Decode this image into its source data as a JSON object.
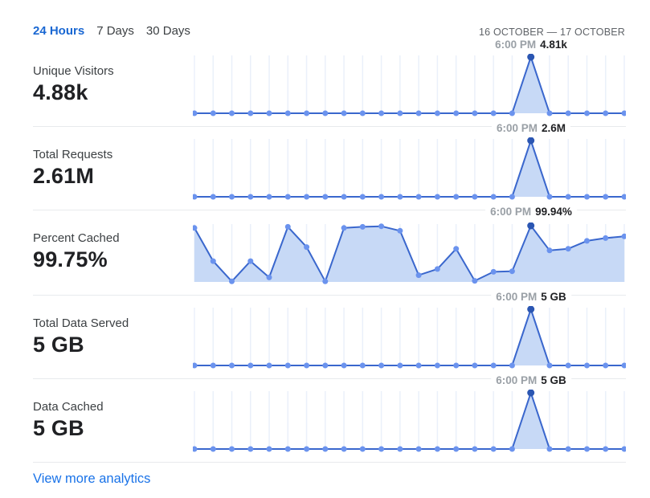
{
  "header": {
    "tabs": [
      {
        "label": "24 Hours",
        "active": true
      },
      {
        "label": "7 Days",
        "active": false
      },
      {
        "label": "30 Days",
        "active": false
      }
    ],
    "date_range": "16 OCTOBER — 17 OCTOBER"
  },
  "rows": [
    {
      "label": "Unique Visitors",
      "value": "4.88k",
      "tooltip_time": "6:00 PM",
      "tooltip_value": "4.81k",
      "highlight_index": 18,
      "heights": [
        0,
        0,
        0,
        0,
        0,
        0,
        0,
        0,
        0,
        0,
        0,
        0,
        0,
        0,
        0,
        0,
        0,
        0,
        1,
        0,
        0,
        0,
        0,
        0
      ]
    },
    {
      "label": "Total Requests",
      "value": "2.61M",
      "tooltip_time": "6:00 PM",
      "tooltip_value": "2.6M",
      "highlight_index": 18,
      "heights": [
        0,
        0,
        0,
        0,
        0,
        0,
        0,
        0,
        0,
        0,
        0,
        0,
        0,
        0,
        0,
        0,
        0,
        0,
        1,
        0,
        0,
        0,
        0,
        0
      ]
    },
    {
      "label": "Percent Cached",
      "value": "99.75%",
      "tooltip_time": "6:00 PM",
      "tooltip_value": "99.94%",
      "highlight_index": 18,
      "heights": [
        0.96,
        0.37,
        0.01,
        0.37,
        0.08,
        0.98,
        0.62,
        0.01,
        0.96,
        0.98,
        0.99,
        0.91,
        0.12,
        0.23,
        0.59,
        0.02,
        0.18,
        0.19,
        1.0,
        0.56,
        0.59,
        0.73,
        0.78,
        0.81
      ]
    },
    {
      "label": "Total Data Served",
      "value": "5 GB",
      "tooltip_time": "6:00 PM",
      "tooltip_value": "5 GB",
      "highlight_index": 18,
      "heights": [
        0,
        0,
        0,
        0,
        0,
        0,
        0,
        0,
        0,
        0,
        0,
        0,
        0,
        0,
        0,
        0,
        0,
        0,
        1,
        0,
        0,
        0,
        0,
        0
      ]
    },
    {
      "label": "Data Cached",
      "value": "5 GB",
      "tooltip_time": "6:00 PM",
      "tooltip_value": "5 GB",
      "highlight_index": 18,
      "heights": [
        0,
        0,
        0,
        0,
        0,
        0,
        0,
        0,
        0,
        0,
        0,
        0,
        0,
        0,
        0,
        0,
        0,
        0,
        1,
        0,
        0,
        0,
        0,
        0
      ]
    }
  ],
  "footer": {
    "link_label": "View more analytics"
  },
  "colors": {
    "accent_blue": "#1967d2",
    "link_blue": "#1a73e8",
    "line": "#3a67cd",
    "dot": "#6b93ee",
    "highlight_dot": "#2b56b2",
    "fill": "#c7d9f6",
    "gridline": "#eaf0fa",
    "divider": "#e8eaed",
    "tooltip_time_gray": "#9aa0a6",
    "text_dark": "#202124",
    "text_label": "#3c4043",
    "date_gray": "#5f6368"
  },
  "chart_data": [
    {
      "type": "line",
      "title": "Unique Visitors",
      "summary_value": "4.88k",
      "n_points": 24,
      "x_axis": "24 hours (16 October — 17 October)",
      "highlighted_point": {
        "index": 18,
        "x_label": "6:00 PM",
        "value": "4.81k"
      },
      "values_norm": [
        0,
        0,
        0,
        0,
        0,
        0,
        0,
        0,
        0,
        0,
        0,
        0,
        0,
        0,
        0,
        0,
        0,
        0,
        1,
        0,
        0,
        0,
        0,
        0
      ],
      "grid": "vertical",
      "legend": "none"
    },
    {
      "type": "line",
      "title": "Total Requests",
      "summary_value": "2.61M",
      "n_points": 24,
      "x_axis": "24 hours (16 October — 17 October)",
      "highlighted_point": {
        "index": 18,
        "x_label": "6:00 PM",
        "value": "2.6M"
      },
      "values_norm": [
        0,
        0,
        0,
        0,
        0,
        0,
        0,
        0,
        0,
        0,
        0,
        0,
        0,
        0,
        0,
        0,
        0,
        0,
        1,
        0,
        0,
        0,
        0,
        0
      ],
      "grid": "vertical",
      "legend": "none"
    },
    {
      "type": "area",
      "title": "Percent Cached",
      "summary_value": "99.75%",
      "n_points": 24,
      "x_axis": "24 hours (16 October — 17 October)",
      "highlighted_point": {
        "index": 18,
        "x_label": "6:00 PM",
        "value": "99.94%"
      },
      "values_norm": [
        0.96,
        0.37,
        0.01,
        0.37,
        0.08,
        0.98,
        0.62,
        0.01,
        0.96,
        0.98,
        0.99,
        0.91,
        0.12,
        0.23,
        0.59,
        0.02,
        0.18,
        0.19,
        1.0,
        0.56,
        0.59,
        0.73,
        0.78,
        0.81
      ],
      "grid": "vertical",
      "legend": "none"
    },
    {
      "type": "line",
      "title": "Total Data Served",
      "summary_value": "5 GB",
      "n_points": 24,
      "x_axis": "24 hours (16 October — 17 October)",
      "highlighted_point": {
        "index": 18,
        "x_label": "6:00 PM",
        "value": "5 GB"
      },
      "values_norm": [
        0,
        0,
        0,
        0,
        0,
        0,
        0,
        0,
        0,
        0,
        0,
        0,
        0,
        0,
        0,
        0,
        0,
        0,
        1,
        0,
        0,
        0,
        0,
        0
      ],
      "grid": "vertical",
      "legend": "none"
    },
    {
      "type": "line",
      "title": "Data Cached",
      "summary_value": "5 GB",
      "n_points": 24,
      "x_axis": "24 hours (16 October — 17 October)",
      "highlighted_point": {
        "index": 18,
        "x_label": "6:00 PM",
        "value": "5 GB"
      },
      "values_norm": [
        0,
        0,
        0,
        0,
        0,
        0,
        0,
        0,
        0,
        0,
        0,
        0,
        0,
        0,
        0,
        0,
        0,
        0,
        1,
        0,
        0,
        0,
        0,
        0
      ],
      "grid": "vertical",
      "legend": "none"
    }
  ]
}
